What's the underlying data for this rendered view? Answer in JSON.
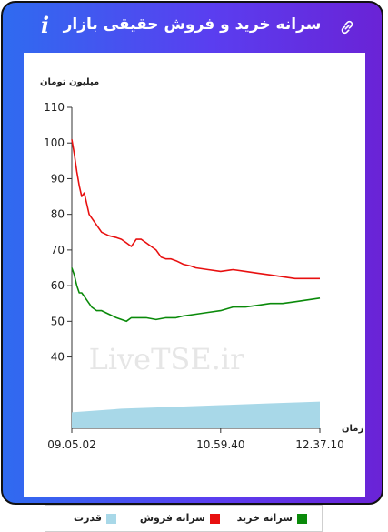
{
  "header": {
    "title": "سرانه خرید و فروش حقیقی بازار",
    "info_icon": "info-icon",
    "link_icon": "link-icon"
  },
  "watermark": "LiveTSE.ir",
  "legend": [
    {
      "label": "سرانه خرید",
      "color": "#0a8a0a"
    },
    {
      "label": "سرانه فروش",
      "color": "#e81010"
    },
    {
      "label": "قدرت",
      "color": "#a8d8e8"
    }
  ],
  "chart_data": {
    "type": "line",
    "ylabel": "میلیون تومان",
    "xlabel": "زمان",
    "yticks": [
      40,
      50,
      60,
      70,
      80,
      90,
      100,
      110
    ],
    "xticks": [
      "09.05.02",
      "10.59.40",
      "12.37.10"
    ],
    "ylim": [
      20,
      110
    ],
    "grid": false,
    "series": [
      {
        "name": "سرانه فروش",
        "color": "#e81010",
        "points": [
          [
            0,
            101
          ],
          [
            0.01,
            97
          ],
          [
            0.02,
            92
          ],
          [
            0.03,
            88
          ],
          [
            0.04,
            85
          ],
          [
            0.05,
            86
          ],
          [
            0.06,
            83
          ],
          [
            0.07,
            80
          ],
          [
            0.08,
            79
          ],
          [
            0.1,
            77
          ],
          [
            0.12,
            75
          ],
          [
            0.15,
            74
          ],
          [
            0.18,
            73.5
          ],
          [
            0.2,
            73
          ],
          [
            0.22,
            72
          ],
          [
            0.24,
            71
          ],
          [
            0.26,
            73
          ],
          [
            0.28,
            73
          ],
          [
            0.3,
            72
          ],
          [
            0.32,
            71
          ],
          [
            0.34,
            70
          ],
          [
            0.36,
            68
          ],
          [
            0.38,
            67.5
          ],
          [
            0.4,
            67.5
          ],
          [
            0.42,
            67
          ],
          [
            0.45,
            66
          ],
          [
            0.48,
            65.5
          ],
          [
            0.5,
            65
          ],
          [
            0.55,
            64.5
          ],
          [
            0.6,
            64
          ],
          [
            0.65,
            64.5
          ],
          [
            0.7,
            64
          ],
          [
            0.75,
            63.5
          ],
          [
            0.8,
            63
          ],
          [
            0.85,
            62.5
          ],
          [
            0.9,
            62
          ],
          [
            0.95,
            62
          ],
          [
            1.0,
            62
          ]
        ]
      },
      {
        "name": "سرانه خرید",
        "color": "#0a8a0a",
        "points": [
          [
            0,
            65
          ],
          [
            0.01,
            63
          ],
          [
            0.02,
            60
          ],
          [
            0.03,
            58
          ],
          [
            0.04,
            58
          ],
          [
            0.05,
            57
          ],
          [
            0.06,
            56
          ],
          [
            0.08,
            54
          ],
          [
            0.1,
            53
          ],
          [
            0.12,
            53
          ],
          [
            0.15,
            52
          ],
          [
            0.18,
            51
          ],
          [
            0.22,
            50
          ],
          [
            0.24,
            51
          ],
          [
            0.26,
            51
          ],
          [
            0.3,
            51
          ],
          [
            0.34,
            50.5
          ],
          [
            0.38,
            51
          ],
          [
            0.42,
            51
          ],
          [
            0.45,
            51.5
          ],
          [
            0.5,
            52
          ],
          [
            0.55,
            52.5
          ],
          [
            0.6,
            53
          ],
          [
            0.65,
            54
          ],
          [
            0.7,
            54
          ],
          [
            0.75,
            54.5
          ],
          [
            0.8,
            55
          ],
          [
            0.85,
            55
          ],
          [
            0.9,
            55.5
          ],
          [
            0.95,
            56
          ],
          [
            1.0,
            56.5
          ]
        ]
      }
    ],
    "area": {
      "name": "قدرت",
      "color": "#a8d8e8",
      "points": [
        [
          0,
          24.5
        ],
        [
          0.2,
          25.5
        ],
        [
          0.4,
          26
        ],
        [
          0.6,
          26.5
        ],
        [
          0.8,
          27
        ],
        [
          1.0,
          27.5
        ]
      ]
    }
  }
}
